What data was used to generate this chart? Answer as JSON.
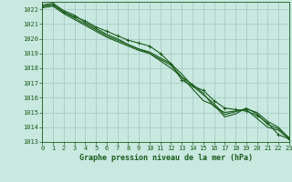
{
  "title": "Graphe pression niveau de la mer (hPa)",
  "bg_color": "#c8e8e0",
  "grid_color": "#a8ccc8",
  "line_color": "#1a5c1a",
  "xlim": [
    0,
    23
  ],
  "ylim": [
    1013,
    1022.5
  ],
  "yticks": [
    1013,
    1014,
    1015,
    1016,
    1017,
    1018,
    1019,
    1020,
    1021,
    1022
  ],
  "xticks": [
    0,
    1,
    2,
    3,
    4,
    5,
    6,
    7,
    8,
    9,
    10,
    11,
    12,
    13,
    14,
    15,
    16,
    17,
    18,
    19,
    20,
    21,
    22,
    23
  ],
  "series": [
    [
      1022.2,
      1022.3,
      1021.8,
      1021.5,
      1021.2,
      1020.8,
      1020.5,
      1020.2,
      1019.9,
      1019.7,
      1019.5,
      1019.0,
      1018.3,
      1017.2,
      1016.8,
      1016.5,
      1015.8,
      1015.3,
      1015.2,
      1015.1,
      1014.8,
      1014.3,
      1013.5,
      1013.2
    ],
    [
      1022.3,
      1022.4,
      1021.9,
      1021.6,
      1021.1,
      1020.7,
      1020.3,
      1020.0,
      1019.6,
      1019.3,
      1019.0,
      1018.5,
      1018.0,
      1017.4,
      1016.9,
      1016.3,
      1015.4,
      1015.0,
      1015.1,
      1015.2,
      1014.6,
      1014.0,
      1013.8,
      1013.2
    ],
    [
      1022.1,
      1022.2,
      1021.7,
      1021.3,
      1020.9,
      1020.5,
      1020.1,
      1019.8,
      1019.5,
      1019.2,
      1019.0,
      1018.6,
      1018.2,
      1017.4,
      1016.6,
      1015.8,
      1015.5,
      1014.7,
      1014.9,
      1015.3,
      1014.9,
      1014.2,
      1013.9,
      1013.3
    ],
    [
      1022.2,
      1022.3,
      1021.8,
      1021.4,
      1021.0,
      1020.6,
      1020.2,
      1019.9,
      1019.6,
      1019.3,
      1019.1,
      1018.7,
      1018.3,
      1017.6,
      1016.8,
      1016.2,
      1015.6,
      1014.85,
      1015.05,
      1015.25,
      1015.0,
      1014.4,
      1014.0,
      1013.25
    ]
  ],
  "marker_series": 0,
  "tick_fontsize": 5.0,
  "label_fontsize": 6.0
}
